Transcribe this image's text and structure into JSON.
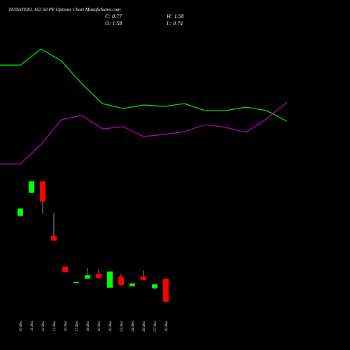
{
  "chart_data": [
    {
      "type": "line",
      "ylim": [
        0,
        100
      ],
      "series": [
        {
          "color": "#00ff00",
          "values": [
            75.9,
            75.9,
            86.4,
            78.6,
            63.6,
            50.9,
            47.7,
            50,
            49.1,
            50.9,
            46.4,
            46.4,
            48.6,
            46.4,
            39.5
          ]
        },
        {
          "color": "#cc00cc",
          "values": [
            11.8,
            11.8,
            24.5,
            40.5,
            43.2,
            34.5,
            35.9,
            29.5,
            30.9,
            32.7,
            37.3,
            35.5,
            32.3,
            40.9,
            51.8
          ]
        }
      ]
    },
    {
      "type": "candlestick",
      "title": "TATASTEEL 162.50 PE Options Chart MunafaSutra.com",
      "stats": [
        {
          "label": "C:",
          "value": 0.77
        },
        {
          "label": "H:",
          "value": 1.58
        },
        {
          "label": "O:",
          "value": 1.58
        },
        {
          "label": "L:",
          "value": 0.74
        }
      ],
      "categories": [
        "10 Dec",
        "11 Dec",
        "12 Dec",
        "13 Dec",
        "16 Dec",
        "17 Dec",
        "18 Dec",
        "19 Dec",
        "20 Dec",
        "23 Dec",
        "24 Dec",
        "26 Dec",
        "27 Dec",
        "30 Dec"
      ],
      "open": [
        3.77,
        4.58,
        4.99,
        3.08,
        2.0,
        1.45,
        1.58,
        1.75,
        1.26,
        1.65,
        1.31,
        1.65,
        1.24,
        1.58
      ],
      "high": [
        4.04,
        4.99,
        4.99,
        3.89,
        2.0,
        1.46,
        1.95,
        1.9,
        1.83,
        1.73,
        1.41,
        1.87,
        1.38,
        1.58
      ],
      "low": [
        3.77,
        4.58,
        3.86,
        2.91,
        1.8,
        1.45,
        1.58,
        1.6,
        1.26,
        1.33,
        1.31,
        1.53,
        1.19,
        0.74
      ],
      "close": [
        4.04,
        4.99,
        4.28,
        2.91,
        1.8,
        1.46,
        1.7,
        1.6,
        1.83,
        1.36,
        1.41,
        1.53,
        1.38,
        0.77
      ],
      "up_color": "#00ff00",
      "down_color": "#ff0000",
      "ylim": [
        0.55,
        5.21
      ]
    }
  ]
}
